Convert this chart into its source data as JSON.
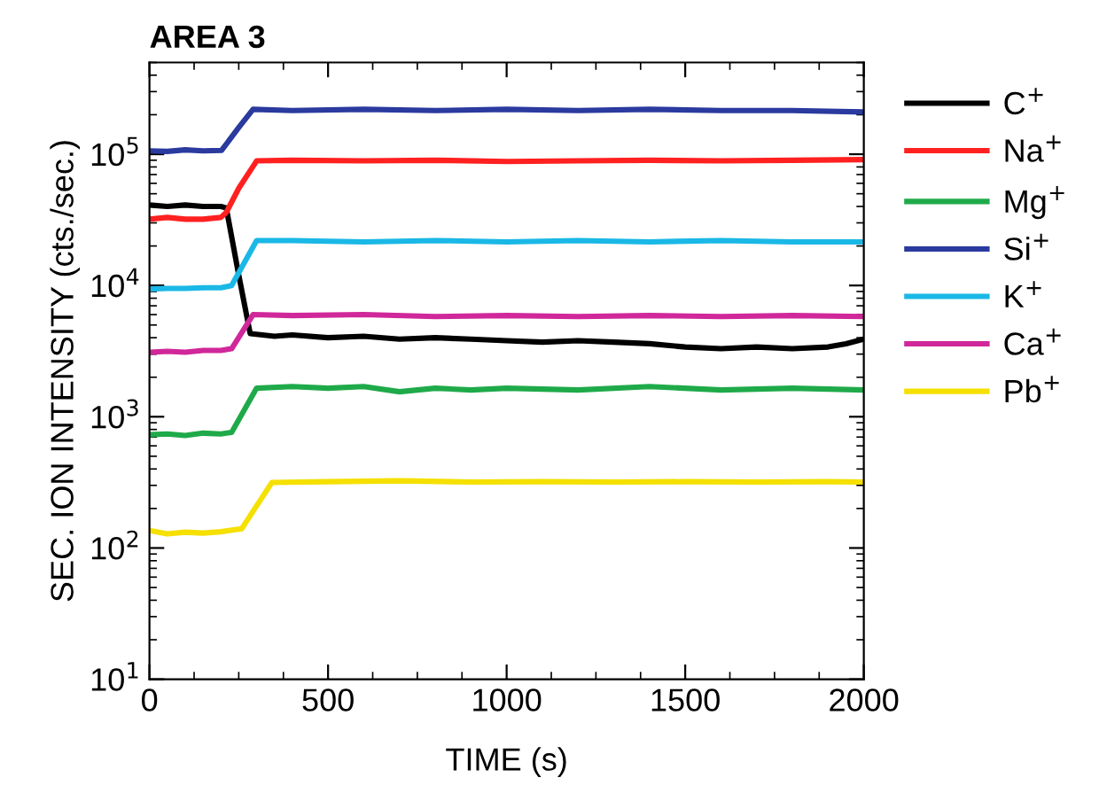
{
  "chart_data": {
    "type": "line",
    "title": "AREA 3",
    "xlabel": "TIME (s)",
    "ylabel": "SEC. ION INTENSITY (cts./sec.)",
    "log": "y",
    "xlim": [
      0,
      2000
    ],
    "xticks": [
      0,
      500,
      1000,
      1500,
      2000
    ],
    "ylim": [
      10,
      500000
    ],
    "yticks": [
      {
        "value": 10,
        "label": "10$^{1}$"
      },
      {
        "value": 100,
        "label": "10$^{2}$"
      },
      {
        "value": 1000,
        "label": "10$^{3}$"
      },
      {
        "value": 10000,
        "label": "10$^{4}$"
      },
      {
        "value": 100000,
        "label": "10$^{5}$"
      }
    ],
    "grid": false,
    "legend": "right",
    "marker": "none",
    "line_style": "solid",
    "series": [
      {
        "name": "C$^{+}$",
        "color": "#000000",
        "x": [
          0,
          50,
          100,
          150,
          200,
          215,
          250,
          282,
          350,
          400,
          500,
          600,
          700,
          800,
          900,
          1000,
          1100,
          1200,
          1300,
          1400,
          1500,
          1600,
          1700,
          1800,
          1900,
          1950,
          2000
        ],
        "values": [
          41000,
          40000,
          41000,
          40000,
          40000,
          39000,
          12000,
          4300,
          4100,
          4200,
          4000,
          4100,
          3900,
          4000,
          3900,
          3800,
          3700,
          3800,
          3700,
          3600,
          3400,
          3300,
          3400,
          3300,
          3400,
          3600,
          3900
        ]
      },
      {
        "name": "Na$^{+}$",
        "color": "#ff2020",
        "x": [
          0,
          50,
          100,
          150,
          200,
          215,
          250,
          300,
          400,
          600,
          800,
          1000,
          1200,
          1400,
          1600,
          1800,
          2000
        ],
        "values": [
          32000,
          33000,
          32000,
          32000,
          33000,
          36000,
          55000,
          89000,
          90000,
          89000,
          90000,
          88000,
          89000,
          90000,
          89000,
          90000,
          91000
        ]
      },
      {
        "name": "Mg$^{+}$",
        "color": "#1faa4a",
        "x": [
          0,
          50,
          100,
          150,
          200,
          230,
          300,
          400,
          500,
          600,
          700,
          800,
          900,
          1000,
          1200,
          1400,
          1600,
          1800,
          2000
        ],
        "values": [
          730,
          740,
          720,
          750,
          740,
          760,
          1650,
          1700,
          1650,
          1700,
          1550,
          1650,
          1600,
          1650,
          1600,
          1700,
          1600,
          1650,
          1600
        ]
      },
      {
        "name": "Si$^{+}$",
        "color": "#2a3a9e",
        "x": [
          0,
          50,
          100,
          150,
          202,
          250,
          290,
          400,
          600,
          800,
          1000,
          1200,
          1400,
          1600,
          1800,
          2000
        ],
        "values": [
          106000,
          105000,
          108000,
          106000,
          107000,
          160000,
          220000,
          215000,
          220000,
          215000,
          220000,
          215000,
          220000,
          215000,
          215000,
          210000
        ]
      },
      {
        "name": "K$^{+}$",
        "color": "#1ab8e6",
        "x": [
          0,
          50,
          100,
          150,
          200,
          230,
          300,
          400,
          600,
          800,
          1000,
          1200,
          1400,
          1600,
          1800,
          2000
        ],
        "values": [
          9400,
          9500,
          9500,
          9600,
          9600,
          10000,
          22000,
          22000,
          21500,
          22000,
          21500,
          22000,
          21500,
          22000,
          21500,
          21500
        ]
      },
      {
        "name": "Ca$^{+}$",
        "color": "#d0289a",
        "x": [
          0,
          50,
          100,
          150,
          200,
          230,
          290,
          400,
          600,
          800,
          1000,
          1200,
          1400,
          1600,
          1800,
          2000
        ],
        "values": [
          3100,
          3150,
          3100,
          3200,
          3200,
          3300,
          6000,
          5900,
          6000,
          5800,
          5900,
          5800,
          5900,
          5800,
          5900,
          5800
        ]
      },
      {
        "name": "Pb$^{+}$",
        "color": "#f5e000",
        "x": [
          0,
          50,
          100,
          150,
          200,
          258,
          343,
          500,
          700,
          900,
          1100,
          1300,
          1500,
          1700,
          1900,
          2000
        ],
        "values": [
          136,
          128,
          132,
          130,
          133,
          140,
          316,
          320,
          325,
          318,
          320,
          318,
          320,
          318,
          320,
          318
        ]
      }
    ]
  }
}
